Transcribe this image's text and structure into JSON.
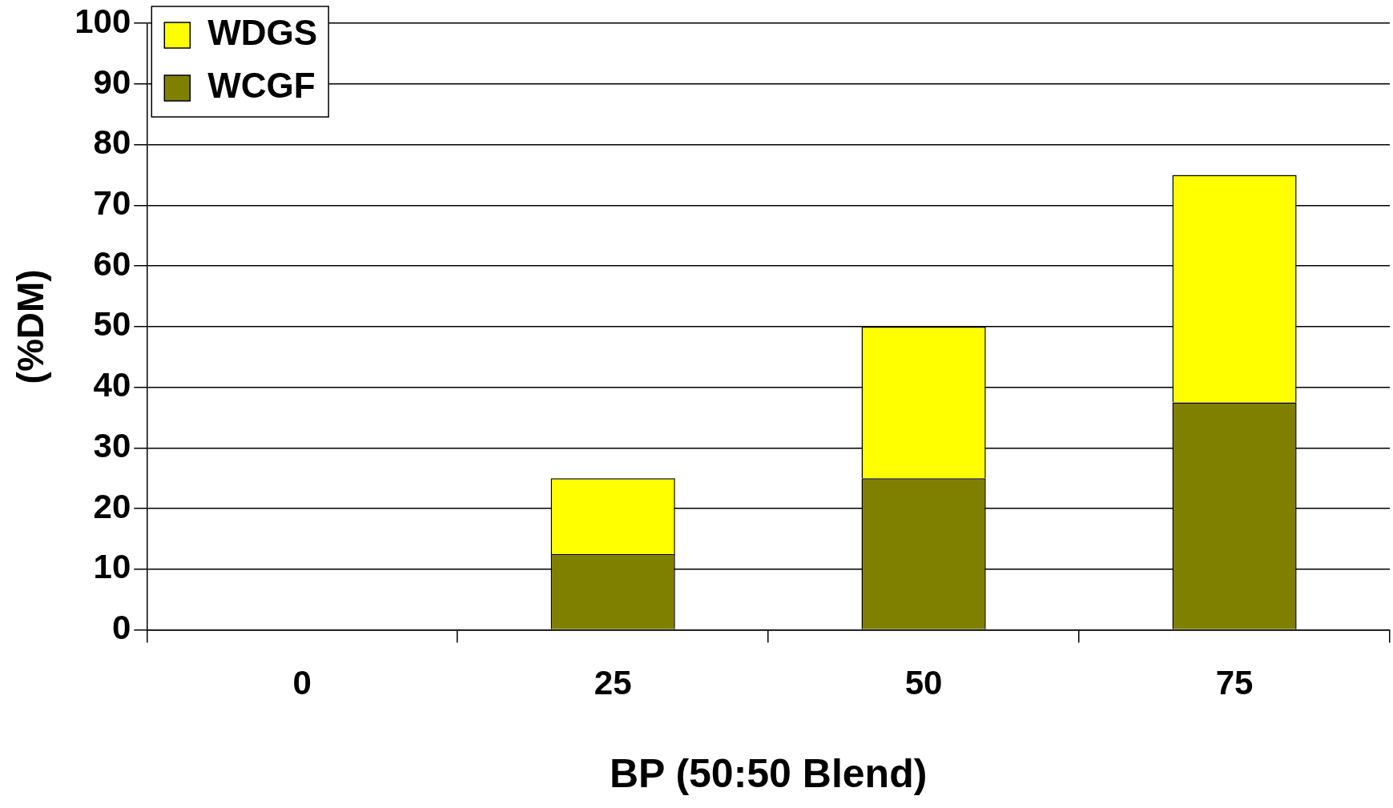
{
  "chart_data": {
    "type": "bar",
    "stacked": true,
    "xlabel": "BP (50:50 Blend)",
    "ylabel": "(%DM)",
    "categories": [
      "0",
      "25",
      "50",
      "75"
    ],
    "series": [
      {
        "name": "WCGF",
        "color": "#808000",
        "values": [
          0,
          12.5,
          25,
          37.5
        ]
      },
      {
        "name": "WDGS",
        "color": "#ffff00",
        "values": [
          0,
          12.5,
          25,
          37.5
        ]
      }
    ],
    "ylim": [
      0,
      100
    ],
    "yticks": [
      0,
      10,
      20,
      30,
      40,
      50,
      60,
      70,
      80,
      90,
      100
    ],
    "grid": "y",
    "legend": "top left"
  }
}
